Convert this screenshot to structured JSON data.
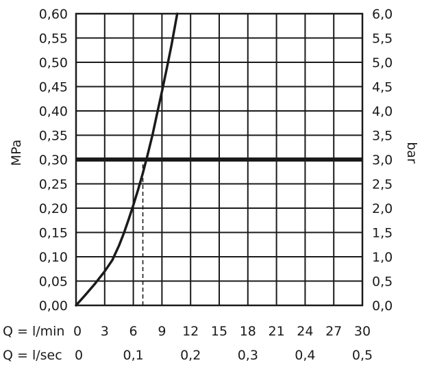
{
  "chart_data": {
    "type": "line",
    "title": "",
    "left_axis": {
      "label": "MPa",
      "range": [
        0,
        0.6
      ],
      "ticks": [
        0,
        0.05,
        0.1,
        0.15,
        0.2,
        0.25,
        0.3,
        0.35,
        0.4,
        0.45,
        0.5,
        0.55,
        0.6
      ],
      "tick_labels": [
        "0,00",
        "0,05",
        "0,10",
        "0,15",
        "0,20",
        "0,25",
        "0,30",
        "0,35",
        "0,40",
        "0,45",
        "0,50",
        "0,55",
        "0,60"
      ]
    },
    "right_axis": {
      "label": "bar",
      "range": [
        0,
        6
      ],
      "tick_labels": [
        "0,0",
        "0,5",
        "1,0",
        "1,5",
        "2,0",
        "2,5",
        "3,0",
        "3,5",
        "4,0",
        "4,5",
        "5,0",
        "5,5",
        "6,0"
      ]
    },
    "x_axis_primary": {
      "label": "Q = l/min",
      "range": [
        0,
        30
      ],
      "ticks": [
        0,
        3,
        6,
        9,
        12,
        15,
        18,
        21,
        24,
        27,
        30
      ],
      "tick_labels": [
        "0",
        "3",
        "6",
        "9",
        "12",
        "15",
        "18",
        "21",
        "24",
        "27",
        "30"
      ]
    },
    "x_axis_secondary": {
      "label": "Q = l/sec",
      "ticks": [
        0,
        0.1,
        0.2,
        0.3,
        0.4,
        0.5
      ],
      "tick_labels": [
        "0",
        "0,1",
        "0,2",
        "0,3",
        "0,4",
        "0,5"
      ]
    },
    "grid": true,
    "series": [
      {
        "x": [
          0,
          1,
          2,
          3,
          3.8,
          4.5,
          5,
          5.5,
          6,
          6.5,
          7,
          7.5,
          8,
          8.5,
          9,
          9.5,
          10,
          10.6
        ],
        "y": [
          0,
          0.022,
          0.045,
          0.07,
          0.093,
          0.123,
          0.148,
          0.176,
          0.206,
          0.238,
          0.272,
          0.31,
          0.35,
          0.395,
          0.44,
          0.487,
          0.535,
          0.6
        ]
      }
    ],
    "reference_line": {
      "orientation": "horizontal",
      "y": 0.3
    },
    "reference_marker": {
      "x": 7,
      "y_from": 0,
      "y_to": 0.3,
      "style": "dashed"
    }
  }
}
